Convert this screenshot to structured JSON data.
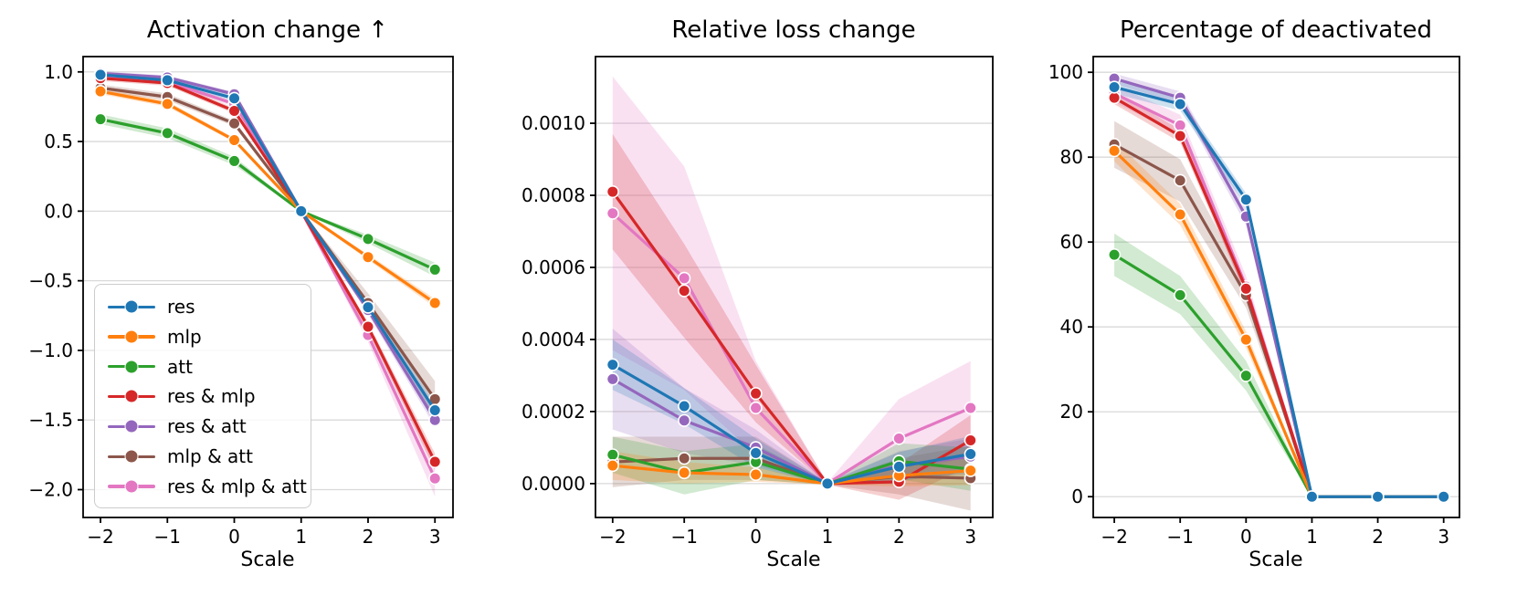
{
  "figure": {
    "background": "#ffffff",
    "text_color": "#000000",
    "grid_color": "#d9d9d9",
    "spine_color": "#000000"
  },
  "legend": {
    "position": "lower left",
    "entries": [
      "res",
      "mlp",
      "att",
      "res & mlp",
      "res & att",
      "mlp & att",
      "res & mlp & att"
    ]
  },
  "series_colors": {
    "res": "#1f77b4",
    "mlp": "#ff7f0e",
    "att": "#2ca02c",
    "res & mlp": "#d62728",
    "res & att": "#9467bd",
    "mlp & att": "#8c564b",
    "res & mlp & att": "#e377c2"
  },
  "chart_data": [
    {
      "type": "line",
      "title": "Activation change ↑",
      "xlabel": "Scale",
      "x": [
        -2,
        -1,
        0,
        1,
        2,
        3
      ],
      "xtick_labels": [
        "−2",
        "−1",
        "0",
        "1",
        "2",
        "3"
      ],
      "ytick_values": [
        1.0,
        0.5,
        0.0,
        -0.5,
        -1.0,
        -1.5,
        -2.0
      ],
      "ytick_labels": [
        "1.0",
        "0.5",
        "0.0",
        "−0.5",
        "−1.0",
        "−1.5",
        "−2.0"
      ],
      "xlim": [
        -2.26,
        3.27
      ],
      "ylim": [
        -2.2,
        1.11
      ],
      "grid": "horizontal",
      "band_alpha": 0.22,
      "series": [
        {
          "name": "res",
          "color": "#1f77b4",
          "values": [
            0.98,
            0.94,
            0.81,
            0.0,
            -0.69,
            -1.43
          ],
          "err": [
            0.02,
            0.02,
            0.02,
            0.005,
            0.03,
            0.05
          ]
        },
        {
          "name": "mlp",
          "color": "#ff7f0e",
          "values": [
            0.86,
            0.77,
            0.51,
            0.0,
            -0.33,
            -0.66
          ],
          "err": [
            0.02,
            0.02,
            0.015,
            0.005,
            0.02,
            0.03
          ]
        },
        {
          "name": "att",
          "color": "#2ca02c",
          "values": [
            0.66,
            0.56,
            0.36,
            0.0,
            -0.2,
            -0.42
          ],
          "err": [
            0.035,
            0.035,
            0.03,
            0.005,
            0.03,
            0.05
          ]
        },
        {
          "name": "res & mlp",
          "color": "#d62728",
          "values": [
            0.955,
            0.92,
            0.72,
            0.0,
            -0.83,
            -1.8
          ],
          "err": [
            0.02,
            0.02,
            0.02,
            0.005,
            0.03,
            0.06
          ]
        },
        {
          "name": "res & att",
          "color": "#9467bd",
          "values": [
            0.99,
            0.96,
            0.84,
            0.0,
            -0.71,
            -1.5
          ],
          "err": [
            0.015,
            0.015,
            0.015,
            0.005,
            0.03,
            0.05
          ]
        },
        {
          "name": "mlp & att",
          "color": "#8c564b",
          "values": [
            0.885,
            0.82,
            0.63,
            0.0,
            -0.66,
            -1.35
          ],
          "err": [
            0.025,
            0.025,
            0.02,
            0.005,
            0.07,
            0.13
          ]
        },
        {
          "name": "res & mlp & att",
          "color": "#e377c2",
          "values": [
            0.965,
            0.93,
            0.77,
            0.0,
            -0.89,
            -1.92
          ],
          "err": [
            0.02,
            0.02,
            0.02,
            0.005,
            0.05,
            0.13
          ]
        }
      ]
    },
    {
      "type": "line",
      "title": "Relative loss change",
      "xlabel": "Scale",
      "x": [
        -2,
        -1,
        0,
        1,
        2,
        3
      ],
      "xtick_labels": [
        "−2",
        "−1",
        "0",
        "1",
        "2",
        "3"
      ],
      "ytick_values": [
        0.001,
        0.0008,
        0.0006,
        0.0004,
        0.0002,
        0.0
      ],
      "ytick_labels": [
        "0.0010",
        "0.0008",
        "0.0006",
        "0.0004",
        "0.0002",
        "0.0000"
      ],
      "xlim": [
        -2.24,
        3.31
      ],
      "ylim": [
        -9.4e-05,
        0.001185
      ],
      "grid": "horizontal",
      "band_alpha": 0.22,
      "series": [
        {
          "name": "res",
          "color": "#1f77b4",
          "values": [
            0.00033,
            0.000215,
            8.5e-05,
            0.0,
            4.7e-05,
            8.2e-05
          ],
          "err": [
            7e-05,
            5e-05,
            4e-05,
            3e-06,
            4e-05,
            5e-05
          ]
        },
        {
          "name": "mlp",
          "color": "#ff7f0e",
          "values": [
            5e-05,
            3e-05,
            2.5e-05,
            0.0,
            2.2e-05,
            3.6e-05
          ],
          "err": [
            4e-05,
            3e-05,
            2e-05,
            3e-06,
            3e-05,
            4e-05
          ]
        },
        {
          "name": "att",
          "color": "#2ca02c",
          "values": [
            8e-05,
            3e-05,
            6e-05,
            0.0,
            6.2e-05,
            4e-05
          ],
          "err": [
            5e-05,
            6e-05,
            5e-05,
            3e-06,
            5e-05,
            6e-05
          ]
        },
        {
          "name": "res & mlp",
          "color": "#d62728",
          "values": [
            0.00081,
            0.000535,
            0.00025,
            0.0,
            5e-06,
            0.00012
          ],
          "err": [
            0.00016,
            0.00013,
            8e-05,
            3e-06,
            5e-05,
            7e-05
          ]
        },
        {
          "name": "res & att",
          "color": "#9467bd",
          "values": [
            0.00029,
            0.000175,
            0.0001,
            0.0,
            5e-05,
            7.5e-05
          ],
          "err": [
            0.00014,
            9e-05,
            5e-05,
            3e-06,
            4e-05,
            5e-05
          ]
        },
        {
          "name": "mlp & att",
          "color": "#8c564b",
          "values": [
            6e-05,
            7e-05,
            7e-05,
            0.0,
            2e-05,
            1.5e-05
          ],
          "err": [
            7e-05,
            6e-05,
            6e-05,
            3e-06,
            5e-05,
            9e-05
          ]
        },
        {
          "name": "res & mlp & att",
          "color": "#e377c2",
          "values": [
            0.00075,
            0.00057,
            0.00021,
            0.0,
            0.000125,
            0.00021
          ],
          "err": [
            0.00038,
            0.00031,
            0.00013,
            3e-06,
            0.00011,
            0.00013
          ]
        }
      ]
    },
    {
      "type": "line",
      "title": "Percentage of deactivated",
      "xlabel": "Scale",
      "x": [
        -2,
        -1,
        0,
        1,
        2,
        3
      ],
      "xtick_labels": [
        "−2",
        "−1",
        "0",
        "1",
        "2",
        "3"
      ],
      "ytick_values": [
        100,
        80,
        60,
        40,
        20,
        0
      ],
      "ytick_labels": [
        "100",
        "80",
        "60",
        "40",
        "20",
        "0"
      ],
      "xlim": [
        -2.32,
        3.24
      ],
      "ylim": [
        -4.9,
        103.7
      ],
      "grid": "horizontal",
      "band_alpha": 0.22,
      "series": [
        {
          "name": "res",
          "color": "#1f77b4",
          "values": [
            96.5,
            92.5,
            70,
            0,
            0,
            0
          ],
          "err": [
            1.5,
            1.5,
            1.5,
            0,
            0,
            0
          ]
        },
        {
          "name": "mlp",
          "color": "#ff7f0e",
          "values": [
            81.5,
            66.5,
            37,
            0,
            0,
            0
          ],
          "err": [
            2.5,
            2.5,
            2,
            0,
            0,
            0
          ]
        },
        {
          "name": "att",
          "color": "#2ca02c",
          "values": [
            57,
            47.5,
            28.5,
            0,
            0,
            0
          ],
          "err": [
            5,
            4.5,
            3.5,
            0,
            0,
            0
          ]
        },
        {
          "name": "res & mlp",
          "color": "#d62728",
          "values": [
            94,
            85,
            49,
            0,
            0,
            0
          ],
          "err": [
            1.5,
            1.5,
            1.5,
            0,
            0,
            0
          ]
        },
        {
          "name": "res & att",
          "color": "#9467bd",
          "values": [
            98.5,
            94,
            66,
            0,
            0,
            0
          ],
          "err": [
            1.2,
            1.5,
            2,
            0,
            0,
            0
          ]
        },
        {
          "name": "mlp & att",
          "color": "#8c564b",
          "values": [
            83,
            74.5,
            47.5,
            0,
            0,
            0
          ],
          "err": [
            5.5,
            5,
            3,
            0,
            0,
            0
          ]
        },
        {
          "name": "res & mlp & att",
          "color": "#e377c2",
          "values": [
            95,
            87.5,
            49.5,
            0,
            0,
            0
          ],
          "err": [
            2,
            2.5,
            2.5,
            0,
            0,
            0
          ]
        }
      ]
    }
  ]
}
